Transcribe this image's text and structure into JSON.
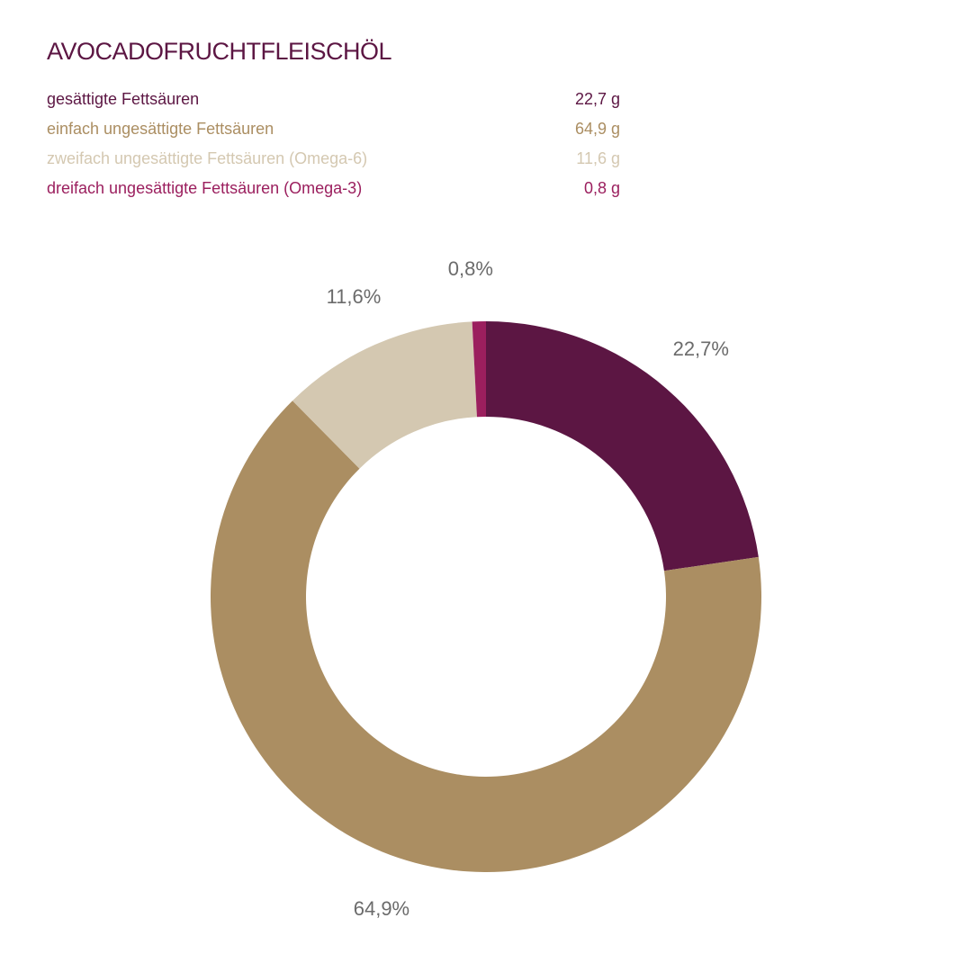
{
  "chart_data": {
    "type": "pie",
    "variant": "donut",
    "title": "AVOCADOFRUCHTFLEISCHÖL",
    "series": [
      {
        "name": "gesättigte Fettsäuren",
        "value": 22.7,
        "value_label": "22,7 g",
        "percent_label": "22,7%",
        "color": "#5c1643"
      },
      {
        "name": "einfach ungesättigte Fettsäuren",
        "value": 64.9,
        "value_label": "64,9 g",
        "percent_label": "64,9%",
        "color": "#ab8e62"
      },
      {
        "name": "zweifach ungesättigte Fettsäuren (Omega-6)",
        "value": 11.6,
        "value_label": "11,6 g",
        "percent_label": "11,6%",
        "color": "#d4c8b1"
      },
      {
        "name": "dreifach ungesättigte Fettsäuren (Omega-3)",
        "value": 0.8,
        "value_label": "0,8 g",
        "percent_label": "0,8%",
        "color": "#9b1f5e"
      }
    ],
    "legend_placement": "top"
  }
}
